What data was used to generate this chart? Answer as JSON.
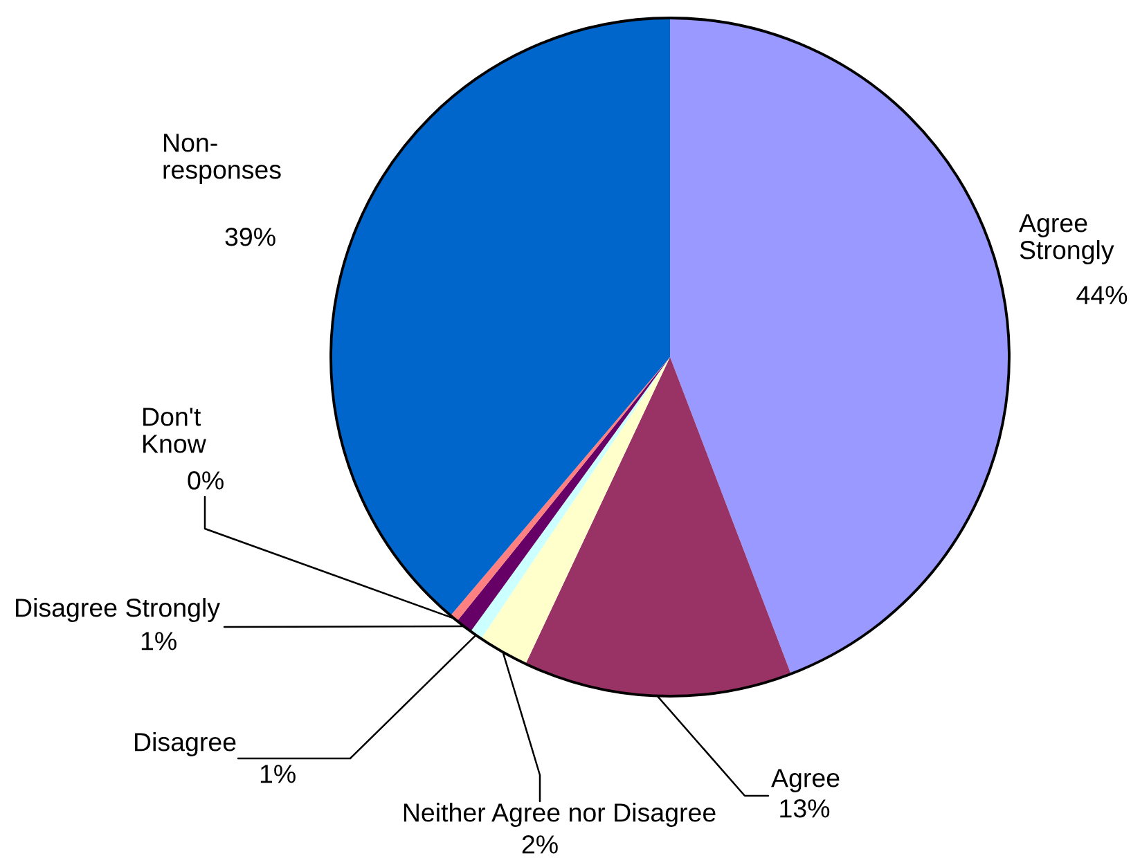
{
  "chart_data": {
    "type": "pie",
    "categories": [
      "Agree\nStrongly",
      "Agree",
      "Neither Agree nor Disagree",
      "Disagree",
      "Disagree Strongly",
      "Don't\nKnow",
      "Non-\nresponses"
    ],
    "values": [
      44.2,
      12.8,
      2.4,
      0.6,
      0.8,
      0.4,
      38.8
    ],
    "value_labels": [
      "44%",
      "13%",
      "2%",
      "1%",
      "1%",
      "0%",
      "39%"
    ],
    "colors": [
      "#9999ff",
      "#993366",
      "#ffffcc",
      "#ccffff",
      "#660066",
      "#ff8080",
      "#0066cc"
    ]
  }
}
